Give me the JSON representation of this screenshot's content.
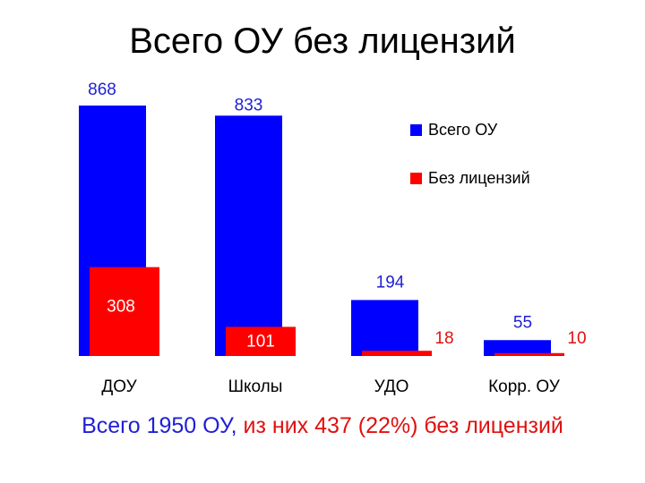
{
  "title": "Всего ОУ без лицензий",
  "footer": {
    "part1": "Всего 1950 ОУ, ",
    "part2": "из них 437 (22%) без лицензий"
  },
  "colors": {
    "total": "#0000ff",
    "no_license": "#ff0000",
    "label_blue": "#1f1fd6",
    "label_red": "#e01010"
  },
  "chart_data": {
    "type": "bar",
    "categories": [
      "ДОУ",
      "Школы",
      "УДО",
      "Корр. ОУ"
    ],
    "series": [
      {
        "name": "Всего ОУ",
        "values": [
          868,
          833,
          194,
          55
        ]
      },
      {
        "name": "Без лицензий",
        "values": [
          308,
          101,
          18,
          10
        ]
      }
    ],
    "ylim": [
      0,
      868
    ],
    "legend": "top-right",
    "grid": false
  }
}
